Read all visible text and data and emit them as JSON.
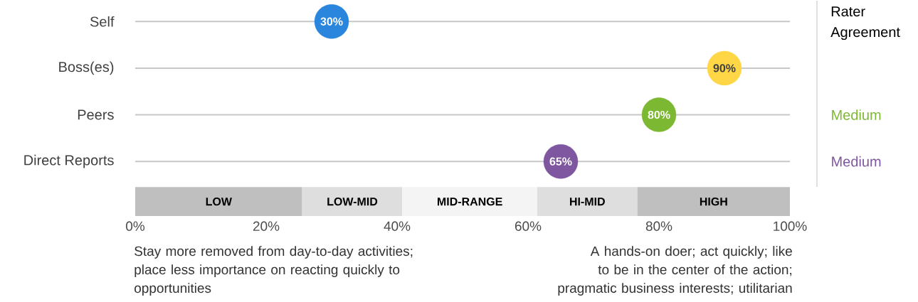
{
  "chart_data": {
    "type": "scatter",
    "orientation": "horizontal",
    "marker": "circle",
    "grid": "y",
    "categories": [
      "Self",
      "Boss(es)",
      "Peers",
      "Direct Reports"
    ],
    "values": [
      30,
      90,
      80,
      65
    ],
    "value_labels": [
      "30%",
      "90%",
      "80%",
      "65%"
    ],
    "colors": [
      "#2a85dd",
      "#ffd645",
      "#7cb832",
      "#7f57a0"
    ],
    "xlim": [
      0,
      100
    ],
    "xticks": [
      {
        "value": 0,
        "label": "0%"
      },
      {
        "value": 20,
        "label": "20%"
      },
      {
        "value": 40,
        "label": "40%"
      },
      {
        "value": 60,
        "label": "60%"
      },
      {
        "value": 80,
        "label": "80%"
      },
      {
        "value": 100,
        "label": "100%"
      }
    ],
    "bands": [
      {
        "axis": "x",
        "from": 0,
        "to": 25.5,
        "label": "LOW",
        "color": "#bfbfbf"
      },
      {
        "axis": "x",
        "from": 25.5,
        "to": 40.8,
        "label": "LOW-MID",
        "color": "#dedede"
      },
      {
        "axis": "x",
        "from": 40.8,
        "to": 61.4,
        "label": "MID-RANGE",
        "color": "#f4f4f4"
      },
      {
        "axis": "x",
        "from": 61.4,
        "to": 76.7,
        "label": "HI-MID",
        "color": "#dedede"
      },
      {
        "axis": "x",
        "from": 76.7,
        "to": 100,
        "label": "HIGH",
        "color": "#bfbfbf"
      }
    ],
    "annotations": [
      "Rater Agreement",
      "Medium",
      "Medium",
      "Stay more removed from day-to-day activities; place less importance on reacting quickly to opportunities",
      "A hands-on doer; act quickly; like to be in the center of the action; pragmatic business interests; utilitarian"
    ]
  }
}
